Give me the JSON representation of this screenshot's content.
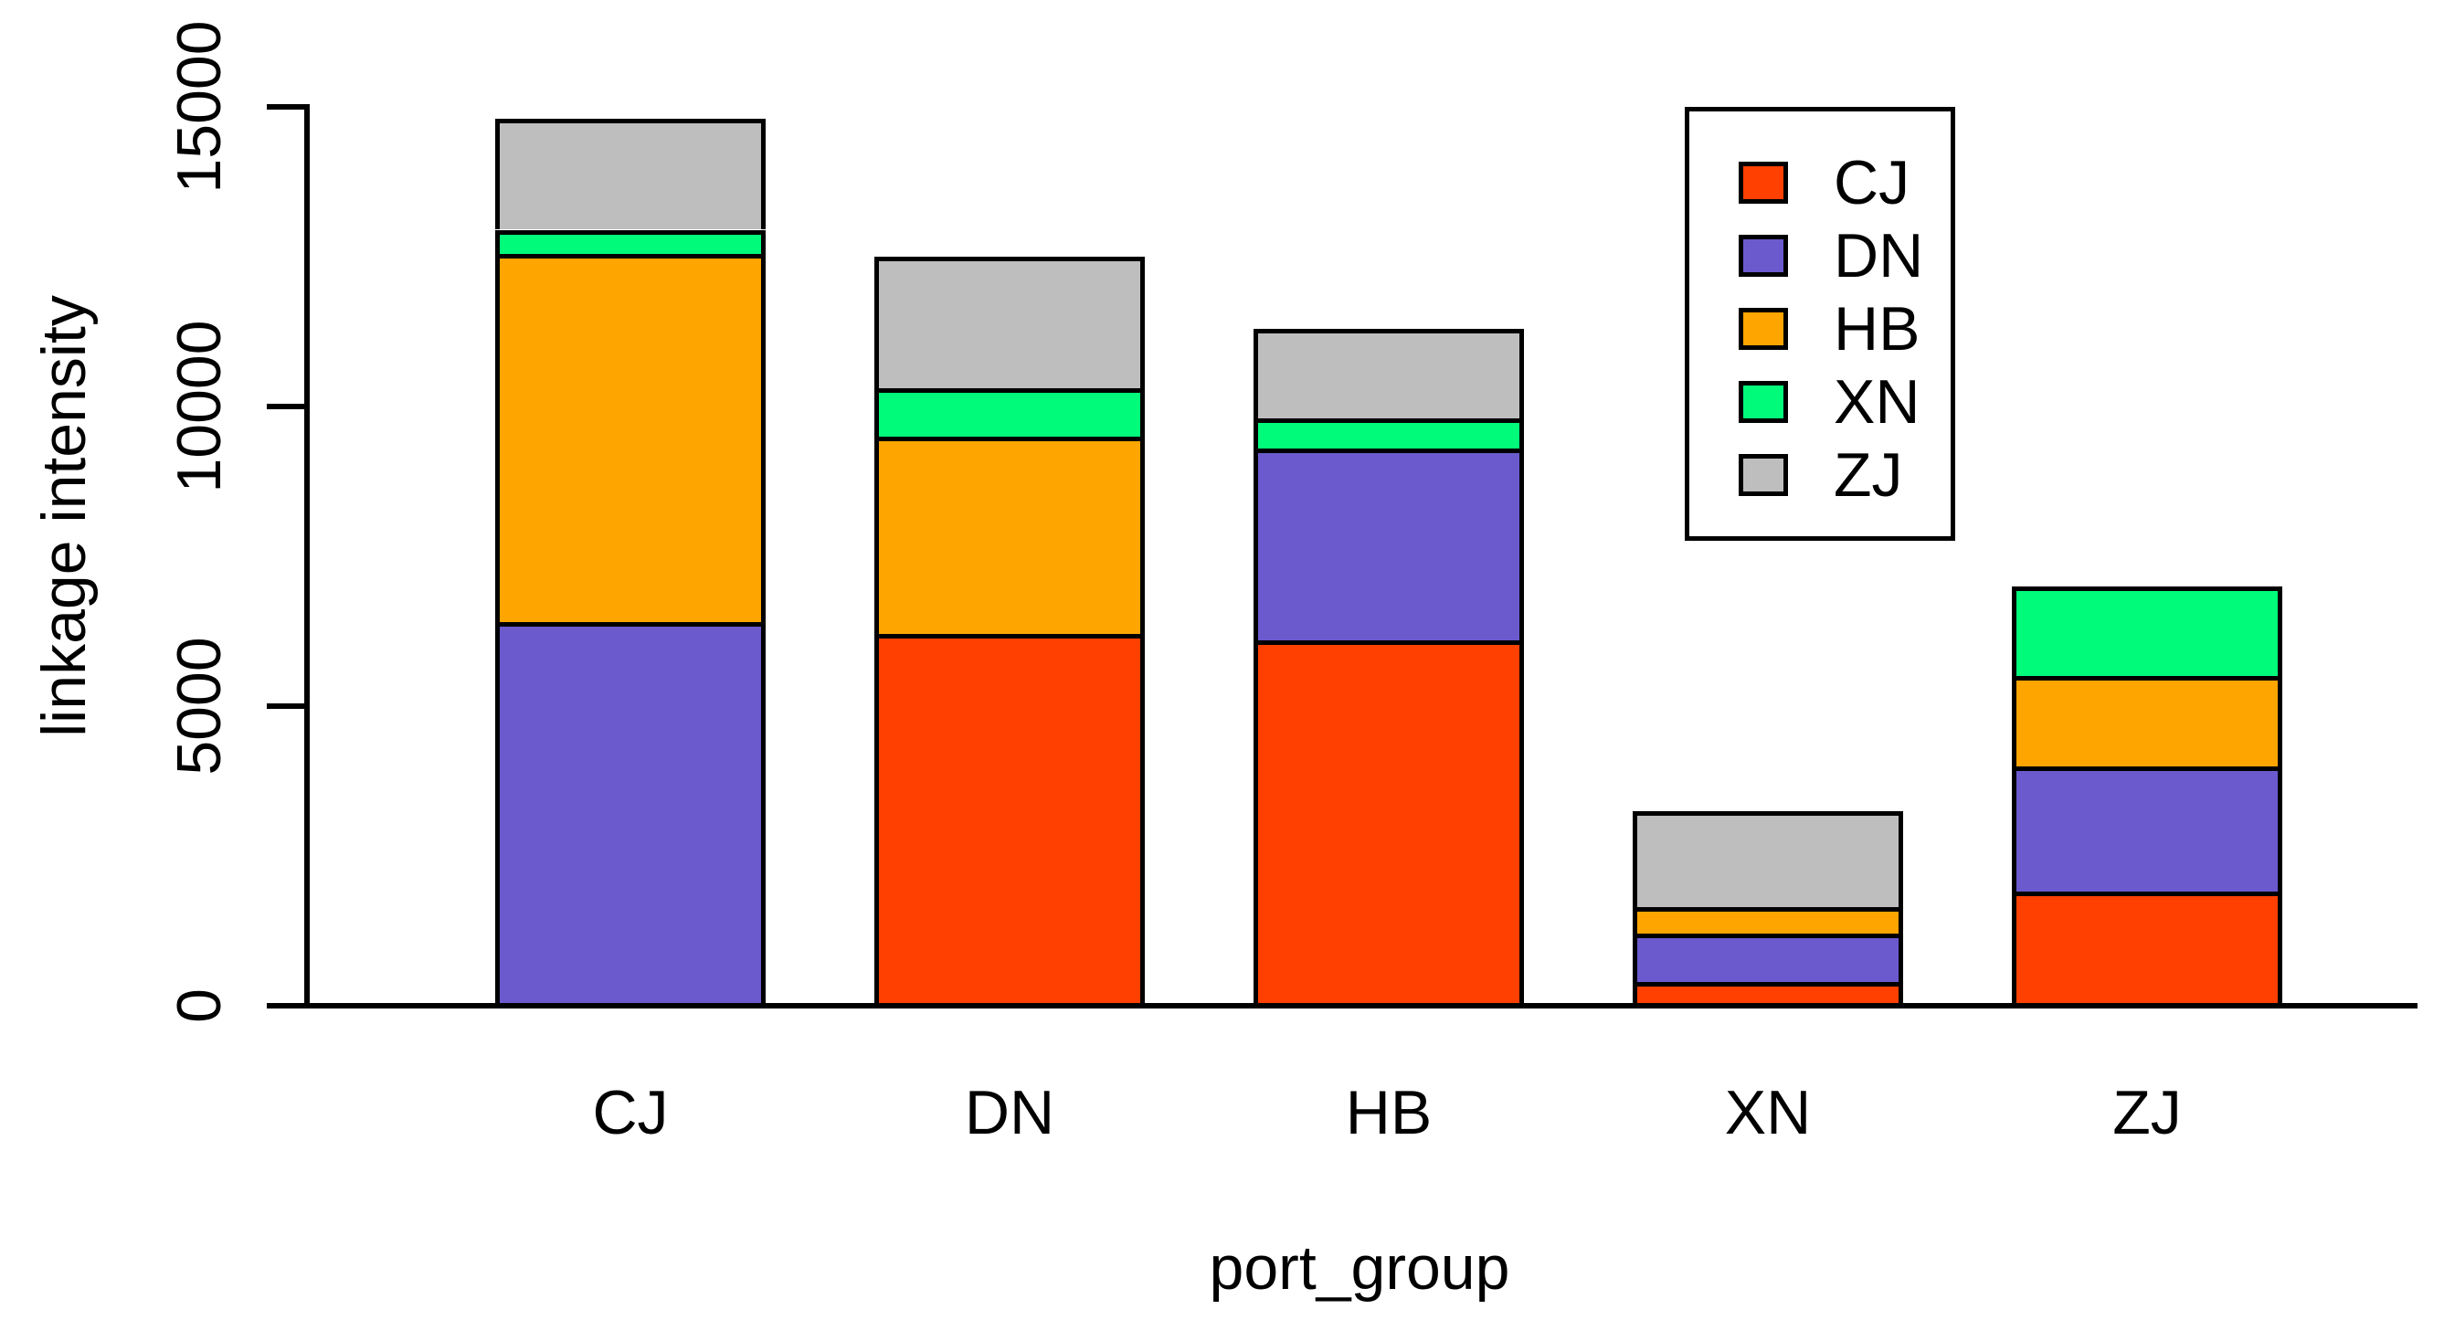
{
  "chart_data": {
    "type": "stacked-bar",
    "title": "",
    "xlabel": "port_group",
    "ylabel": "linkage intensity",
    "categories": [
      "CJ",
      "DN",
      "HB",
      "XN",
      "ZJ"
    ],
    "series": [
      {
        "name": "CJ",
        "color": "#FF4000",
        "values": [
          0,
          6200,
          6100,
          400,
          1900
        ]
      },
      {
        "name": "DN",
        "color": "#6A5ACD",
        "values": [
          6400,
          0,
          3200,
          800,
          2100
        ]
      },
      {
        "name": "HB",
        "color": "#FFA500",
        "values": [
          6150,
          3300,
          0,
          450,
          1500
        ]
      },
      {
        "name": "XN",
        "color": "#00FA7A",
        "values": [
          400,
          800,
          500,
          0,
          1500
        ]
      },
      {
        "name": "ZJ",
        "color": "#BEBEBE",
        "values": [
          1850,
          2200,
          1500,
          1600,
          0
        ]
      }
    ],
    "stack_totals": [
      14800,
      12500,
      11300,
      3250,
      7000
    ],
    "ylim": [
      0,
      15000
    ],
    "yticks": [
      0,
      5000,
      10000,
      15000
    ],
    "ytick_labels": [
      "0",
      "5000",
      "10000",
      "15000"
    ],
    "legend": {
      "position": "top-right",
      "entries": [
        "CJ",
        "DN",
        "HB",
        "XN",
        "ZJ"
      ]
    },
    "grid": false,
    "bar_outline_color": "#000000",
    "axis_color": "#000000",
    "background": "#FFFFFF"
  }
}
